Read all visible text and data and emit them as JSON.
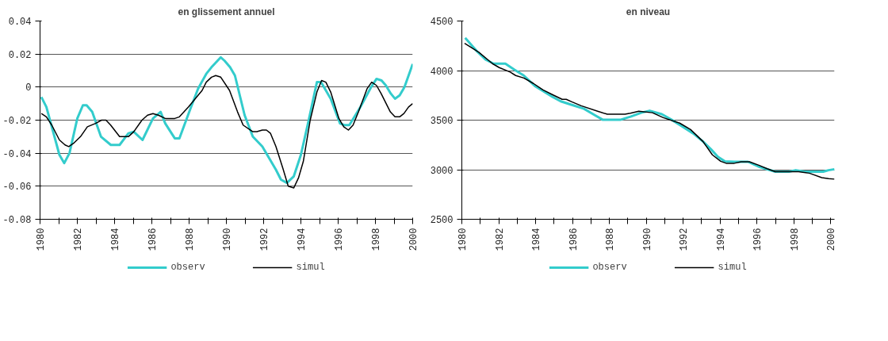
{
  "chart_data": [
    {
      "type": "line",
      "title": "en glissement annuel",
      "xlim": [
        1980,
        2000
      ],
      "ylim": [
        -0.08,
        0.04
      ],
      "yticks": [
        0.04,
        0.02,
        0,
        -0.02,
        -0.04,
        -0.06,
        -0.08
      ],
      "xticks": [
        1980,
        {
          "value": 1981,
          "label": null
        },
        1982,
        {
          "value": 1983,
          "label": null
        },
        1984,
        {
          "value": 1985,
          "label": null
        },
        1986,
        {
          "value": 1987,
          "label": null
        },
        1988,
        {
          "value": 1989,
          "label": null
        },
        1990,
        {
          "value": 1991,
          "label": null
        },
        1992,
        {
          "value": 1993,
          "label": null
        },
        1994,
        {
          "value": 1995,
          "label": null
        },
        1996,
        {
          "value": 1997,
          "label": null
        },
        1998,
        {
          "value": 1999,
          "label": null
        },
        2000
      ],
      "grid": "y",
      "legend": "bottom",
      "marker": "none",
      "line_style": "solid",
      "series": [
        {
          "name": "observ",
          "color": "#33cccc",
          "x": [
            1980.07,
            1980.34,
            1981.04,
            1981.3,
            1981.58,
            1982.0,
            1982.3,
            1982.5,
            1982.8,
            1983.27,
            1983.8,
            1984.27,
            1984.74,
            1985.03,
            1985.5,
            1986.06,
            1986.47,
            1986.72,
            1987.23,
            1987.48,
            1988.04,
            1988.48,
            1988.92,
            1989.2,
            1989.7,
            1989.9,
            1990.2,
            1990.46,
            1990.98,
            1991.42,
            1991.93,
            1992.66,
            1992.93,
            1993.25,
            1993.62,
            1994.0,
            1994.42,
            1994.86,
            1995.08,
            1995.6,
            1996.1,
            1996.33,
            1996.6,
            1997.2,
            1997.77,
            1998.06,
            1998.33,
            1998.56,
            1998.83,
            1999.05,
            1999.3,
            1999.56,
            2000.0
          ],
          "values": [
            -0.006,
            -0.012,
            -0.041,
            -0.046,
            -0.04,
            -0.019,
            -0.011,
            -0.011,
            -0.015,
            -0.03,
            -0.035,
            -0.035,
            -0.028,
            -0.027,
            -0.032,
            -0.019,
            -0.015,
            -0.022,
            -0.031,
            -0.031,
            -0.014,
            -0.001,
            0.008,
            0.012,
            0.018,
            0.016,
            0.012,
            0.007,
            -0.017,
            -0.03,
            -0.036,
            -0.05,
            -0.056,
            -0.058,
            -0.054,
            -0.041,
            -0.02,
            0.003,
            0.003,
            -0.007,
            -0.022,
            -0.023,
            -0.023,
            -0.012,
            0.0,
            0.005,
            0.004,
            0.001,
            -0.004,
            -0.007,
            -0.005,
            0.0,
            0.014
          ]
        },
        {
          "name": "simul",
          "color": "#000000",
          "x": [
            1980.07,
            1980.34,
            1980.63,
            1981.04,
            1981.34,
            1981.54,
            1981.8,
            1982.17,
            1982.54,
            1982.98,
            1983.3,
            1983.54,
            1983.79,
            1984.27,
            1984.74,
            1985.03,
            1985.47,
            1985.77,
            1986.06,
            1986.35,
            1986.72,
            1987.23,
            1987.48,
            1987.97,
            1988.7,
            1988.92,
            1989.2,
            1989.43,
            1989.7,
            1990.17,
            1990.6,
            1990.9,
            1991.42,
            1991.64,
            1991.93,
            1992.15,
            1992.37,
            1992.66,
            1993.03,
            1993.32,
            1993.62,
            1993.87,
            1994.13,
            1994.5,
            1994.86,
            1995.11,
            1995.34,
            1995.6,
            1996.04,
            1996.3,
            1996.55,
            1996.8,
            1997.09,
            1997.55,
            1997.8,
            1998.06,
            1998.31,
            1998.8,
            1999.05,
            1999.3,
            1999.53,
            1999.78,
            2000.0
          ],
          "values": [
            -0.016,
            -0.018,
            -0.023,
            -0.032,
            -0.035,
            -0.036,
            -0.034,
            -0.03,
            -0.024,
            -0.022,
            -0.02,
            -0.02,
            -0.023,
            -0.03,
            -0.03,
            -0.027,
            -0.02,
            -0.017,
            -0.016,
            -0.017,
            -0.019,
            -0.019,
            -0.018,
            -0.012,
            -0.002,
            0.003,
            0.006,
            0.007,
            0.006,
            -0.002,
            -0.015,
            -0.023,
            -0.027,
            -0.027,
            -0.026,
            -0.026,
            -0.028,
            -0.036,
            -0.049,
            -0.06,
            -0.061,
            -0.055,
            -0.045,
            -0.02,
            -0.003,
            0.004,
            0.003,
            -0.003,
            -0.019,
            -0.024,
            -0.026,
            -0.023,
            -0.015,
            -0.001,
            0.003,
            0.001,
            -0.004,
            -0.015,
            -0.018,
            -0.018,
            -0.016,
            -0.012,
            -0.01
          ]
        }
      ]
    },
    {
      "type": "line",
      "title": "en niveau",
      "xlim": [
        1980,
        2000.2
      ],
      "ylim": [
        2500,
        4500
      ],
      "yticks": [
        2500,
        3000,
        3500,
        4000,
        4500
      ],
      "xticks": [
        1980,
        {
          "value": 1981,
          "label": null
        },
        1982,
        {
          "value": 1983,
          "label": null
        },
        1984,
        {
          "value": 1985,
          "label": null
        },
        1986,
        {
          "value": 1987,
          "label": null
        },
        1988,
        {
          "value": 1989,
          "label": null
        },
        1990,
        {
          "value": 1991,
          "label": null
        },
        1992,
        {
          "value": 1993,
          "label": null
        },
        1994,
        {
          "value": 1995,
          "label": null
        },
        1996,
        {
          "value": 1997,
          "label": null
        },
        1998,
        {
          "value": 1999,
          "label": null
        },
        2000
      ],
      "grid": "y",
      "legend": "bottom",
      "marker": "none",
      "line_style": "solid",
      "series": [
        {
          "name": "observ",
          "color": "#33cccc",
          "x": [
            1980.18,
            1980.84,
            1981.29,
            1981.73,
            1982.36,
            1982.84,
            1983.36,
            1983.96,
            1984.92,
            1985.36,
            1986.03,
            1986.62,
            1987.21,
            1987.63,
            1988.62,
            1989.14,
            1989.73,
            1990.18,
            1990.84,
            1991.36,
            1991.88,
            1992.55,
            1993.07,
            1993.51,
            1993.88,
            1994.25,
            1994.77,
            1995.51,
            1996.1,
            1996.99,
            1997.73,
            1998.1,
            1998.61,
            1999.59,
            1999.88,
            2000.2
          ],
          "values": [
            4330,
            4190,
            4110,
            4070,
            4070,
            4010,
            3950,
            3845,
            3735,
            3690,
            3650,
            3615,
            3550,
            3505,
            3505,
            3535,
            3575,
            3595,
            3560,
            3505,
            3445,
            3365,
            3285,
            3205,
            3130,
            3085,
            3080,
            3080,
            3030,
            2980,
            2980,
            2995,
            2980,
            2980,
            2995,
            3005
          ]
        },
        {
          "name": "simul",
          "color": "#000000",
          "x": [
            1980.15,
            1980.92,
            1981.66,
            1982.03,
            1982.62,
            1982.92,
            1983.36,
            1983.88,
            1984.4,
            1984.99,
            1985.44,
            1985.66,
            1985.96,
            1986.47,
            1987.36,
            1987.88,
            1988.84,
            1989.14,
            1989.59,
            1990.33,
            1990.92,
            1991.81,
            1992.4,
            1993.07,
            1993.58,
            1994.03,
            1994.33,
            1994.77,
            1995.14,
            1995.59,
            1996.1,
            1996.55,
            1996.99,
            1998.25,
            1998.84,
            1999.51,
            1999.88,
            2000.2
          ],
          "values": [
            4275,
            4185,
            4070,
            4030,
            3985,
            3950,
            3925,
            3870,
            3805,
            3750,
            3710,
            3710,
            3685,
            3645,
            3590,
            3560,
            3560,
            3570,
            3590,
            3575,
            3525,
            3470,
            3405,
            3285,
            3150,
            3085,
            3065,
            3065,
            3080,
            3080,
            3045,
            3010,
            2980,
            2980,
            2965,
            2920,
            2910,
            2905
          ]
        }
      ]
    }
  ]
}
